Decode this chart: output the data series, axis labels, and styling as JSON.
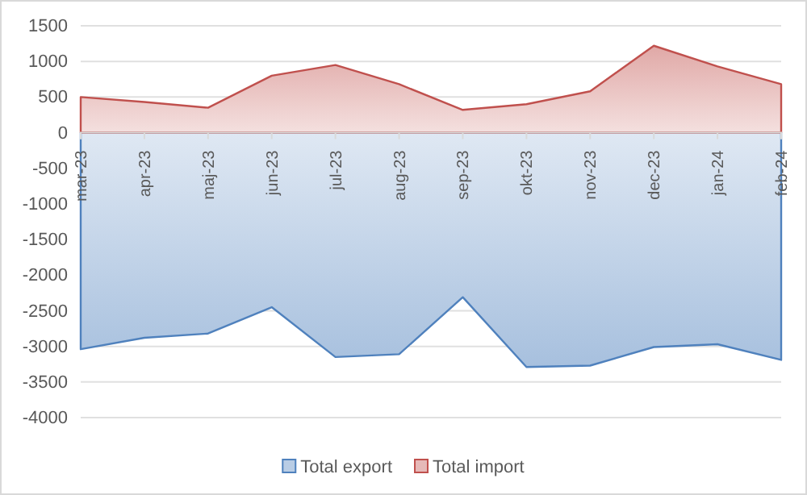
{
  "chart_data": {
    "type": "area",
    "categories": [
      "mar-23",
      "apr-23",
      "maj-23",
      "jun-23",
      "jul-23",
      "aug-23",
      "sep-23",
      "okt-23",
      "nov-23",
      "dec-23",
      "jan-24",
      "feb-24"
    ],
    "series": [
      {
        "name": "Total export",
        "color": "#4f81bd",
        "values": [
          -3040,
          -2880,
          -2820,
          -2450,
          -3150,
          -3110,
          -2310,
          -3290,
          -3270,
          -3010,
          -2970,
          -3190
        ]
      },
      {
        "name": "Total import",
        "color": "#c0504d",
        "values": [
          500,
          430,
          350,
          800,
          950,
          680,
          320,
          400,
          580,
          1220,
          930,
          680
        ]
      }
    ],
    "ylim": [
      -4000,
      1500
    ],
    "yticks": [
      -4000,
      -3500,
      -3000,
      -2500,
      -2000,
      -1500,
      -1000,
      -500,
      0,
      500,
      1000,
      1500
    ],
    "grid": "y",
    "legend": "bottom"
  }
}
